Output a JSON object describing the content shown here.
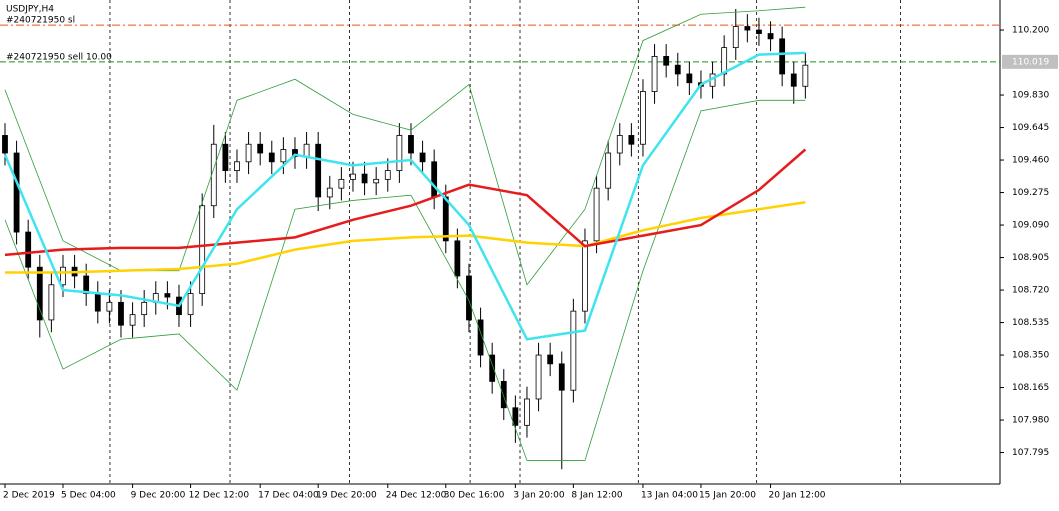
{
  "chart_data": {
    "type": "candlestick",
    "title": "USDJPY,H4",
    "xlim": [
      -0.43,
      85.78
    ],
    "ylim": [
      107.616,
      110.371
    ],
    "yticks": [
      {
        "value": 110.2,
        "label": "110.200"
      },
      {
        "value": 109.83,
        "label": "109.830"
      },
      {
        "value": 109.645,
        "label": "109.645"
      },
      {
        "value": 109.46,
        "label": "109.460"
      },
      {
        "value": 109.275,
        "label": "109.275"
      },
      {
        "value": 109.09,
        "label": "109.090"
      },
      {
        "value": 108.905,
        "label": "108.905"
      },
      {
        "value": 108.72,
        "label": "108.720"
      },
      {
        "value": 108.535,
        "label": "108.535"
      },
      {
        "value": 108.35,
        "label": "108.350"
      },
      {
        "value": 108.165,
        "label": "108.165"
      },
      {
        "value": 107.98,
        "label": "107.980"
      },
      {
        "value": 107.795,
        "label": "107.795"
      }
    ],
    "xticks": [
      {
        "value": 0,
        "label": "2 Dec 2019"
      },
      {
        "value": 5,
        "label": "5 Dec 04:00"
      },
      {
        "value": 11,
        "label": "9 Dec 20:00"
      },
      {
        "value": 16,
        "label": "12 Dec 12:00"
      },
      {
        "value": 22,
        "label": "17 Dec 04:00"
      },
      {
        "value": 27,
        "label": "19 Dec 20:00"
      },
      {
        "value": 33,
        "label": "24 Dec 12:00"
      },
      {
        "value": 38,
        "label": "30 Dec 16:00"
      },
      {
        "value": 44,
        "label": "3 Jan 20:00"
      },
      {
        "value": 49,
        "label": "8 Jan 12:00"
      },
      {
        "value": 55,
        "label": "13 Jan 04:00"
      },
      {
        "value": 60,
        "label": "15 Jan 20:00"
      },
      {
        "value": 66,
        "label": "20 Jan 12:00"
      }
    ],
    "separators": [
      9.05,
      19.4,
      29.7,
      40.1,
      44.4,
      54.6,
      64.8,
      77.2
    ],
    "price_label": {
      "value": 110.019,
      "label": "110.019"
    },
    "levels": [
      {
        "name": "#240721950 sl",
        "value": 110.228,
        "color": "#e0561c"
      },
      {
        "name": "#240721950 sell 10.00",
        "value": 110.019,
        "color": "#1e8c1e"
      }
    ],
    "candles": {
      "open": [
        109.6,
        109.5,
        109.05,
        108.85,
        108.55,
        108.75,
        108.85,
        108.8,
        108.7,
        108.6,
        108.65,
        108.52,
        108.58,
        108.65,
        108.7,
        108.68,
        108.58,
        108.7,
        109.2,
        109.55,
        109.4,
        109.45,
        109.55,
        109.5,
        109.45,
        109.52,
        109.48,
        109.55,
        109.25,
        109.3,
        109.35,
        109.38,
        109.33,
        109.35,
        109.4,
        109.6,
        109.5,
        109.45,
        109.25,
        109.0,
        108.8,
        108.55,
        108.35,
        108.2,
        108.05,
        107.95,
        108.1,
        108.35,
        108.3,
        108.15,
        108.6,
        109.0,
        109.3,
        109.5,
        109.6,
        109.55,
        109.85,
        110.05,
        110.0,
        109.95,
        109.9,
        109.88,
        109.95,
        110.1,
        110.22,
        110.2,
        110.18,
        110.15,
        109.95,
        109.88
      ],
      "high": [
        109.67,
        109.57,
        109.12,
        108.92,
        108.82,
        108.92,
        108.92,
        108.87,
        108.77,
        108.72,
        108.72,
        108.65,
        108.72,
        108.77,
        108.77,
        108.75,
        108.77,
        109.27,
        109.66,
        109.62,
        109.52,
        109.62,
        109.62,
        109.57,
        109.59,
        109.59,
        109.62,
        109.62,
        109.37,
        109.42,
        109.45,
        109.45,
        109.42,
        109.47,
        109.67,
        109.67,
        109.57,
        109.52,
        109.32,
        109.07,
        108.87,
        108.62,
        108.42,
        108.27,
        108.12,
        108.17,
        108.42,
        108.42,
        108.37,
        108.67,
        109.07,
        109.37,
        109.57,
        109.67,
        109.67,
        109.92,
        110.12,
        110.12,
        110.07,
        110.02,
        109.97,
        110.02,
        110.17,
        110.32,
        110.29,
        110.27,
        110.25,
        110.22,
        110.02,
        110.07
      ],
      "low": [
        109.43,
        108.98,
        108.78,
        108.45,
        108.48,
        108.68,
        108.73,
        108.63,
        108.53,
        108.53,
        108.45,
        108.45,
        108.51,
        108.58,
        108.61,
        108.51,
        108.51,
        108.63,
        109.13,
        109.33,
        109.33,
        109.38,
        109.43,
        109.38,
        109.38,
        109.41,
        109.41,
        109.17,
        109.18,
        109.23,
        109.28,
        109.26,
        109.26,
        109.28,
        109.33,
        109.43,
        109.38,
        109.18,
        108.93,
        108.73,
        108.48,
        108.28,
        108.13,
        107.98,
        107.85,
        107.88,
        108.03,
        108.23,
        107.7,
        108.08,
        108.53,
        108.93,
        109.23,
        109.43,
        109.48,
        109.48,
        109.78,
        109.93,
        109.88,
        109.83,
        109.81,
        109.81,
        109.88,
        110.03,
        110.13,
        110.11,
        110.08,
        109.88,
        109.78,
        109.81
      ],
      "close": [
        109.5,
        109.05,
        108.85,
        108.55,
        108.75,
        108.85,
        108.8,
        108.7,
        108.6,
        108.65,
        108.52,
        108.58,
        108.65,
        108.7,
        108.68,
        108.58,
        108.7,
        109.2,
        109.55,
        109.4,
        109.45,
        109.55,
        109.5,
        109.45,
        109.52,
        109.48,
        109.55,
        109.25,
        109.3,
        109.35,
        109.38,
        109.33,
        109.35,
        109.4,
        109.6,
        109.5,
        109.45,
        109.25,
        109.0,
        108.8,
        108.55,
        108.35,
        108.2,
        108.05,
        107.95,
        108.1,
        108.35,
        108.3,
        108.15,
        108.6,
        109.0,
        109.3,
        109.5,
        109.6,
        109.55,
        109.85,
        110.05,
        110.0,
        109.95,
        109.9,
        109.88,
        109.95,
        110.1,
        110.22,
        110.2,
        110.18,
        110.15,
        109.95,
        109.88,
        110.0
      ]
    },
    "line_x": [
      0,
      5,
      10,
      15,
      20,
      25,
      30,
      35,
      40,
      45,
      50,
      55,
      60,
      65,
      69
    ],
    "lines": [
      {
        "color": "#2e9e3a",
        "width": 0.8,
        "values": [
          109.86,
          109.0,
          108.83,
          108.83,
          109.8,
          109.92,
          109.72,
          109.63,
          109.89,
          108.75,
          109.18,
          110.14,
          110.29,
          110.31,
          110.33
        ]
      },
      {
        "color": "#2e9e3a",
        "width": 0.8,
        "values": [
          109.12,
          108.27,
          108.44,
          108.47,
          108.15,
          109.18,
          109.23,
          109.26,
          108.66,
          107.75,
          107.75,
          108.83,
          109.74,
          109.8,
          109.8
        ]
      },
      {
        "color": "#ffd200",
        "width": 2.5,
        "values": [
          108.82,
          108.82,
          108.83,
          108.84,
          108.87,
          108.95,
          109.0,
          109.02,
          109.03,
          108.99,
          108.97,
          109.06,
          109.13,
          109.18,
          109.22
        ]
      },
      {
        "color": "#e61b1b",
        "width": 2.5,
        "values": [
          108.92,
          108.95,
          108.96,
          108.96,
          108.99,
          109.02,
          109.12,
          109.2,
          109.32,
          109.26,
          108.97,
          109.03,
          109.09,
          109.29,
          109.52
        ]
      },
      {
        "color": "#3fe4ee",
        "width": 2.5,
        "values": [
          109.49,
          108.72,
          108.69,
          108.63,
          109.18,
          109.49,
          109.43,
          109.46,
          109.09,
          108.44,
          108.49,
          109.43,
          109.89,
          110.06,
          110.07
        ]
      }
    ]
  }
}
